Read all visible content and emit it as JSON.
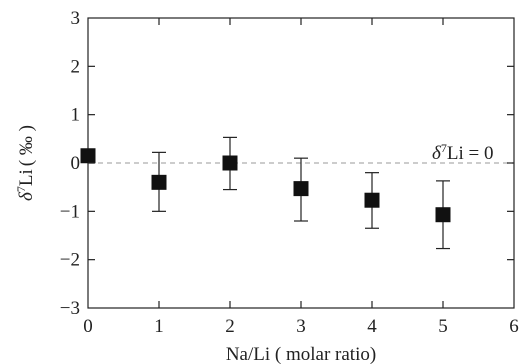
{
  "chart_data": {
    "type": "scatter",
    "title": "",
    "xlabel": "Na/Li ( molar ratio)",
    "ylabel": "δ7Li ( ‰ )",
    "ylabel_parts": {
      "delta": "δ",
      "superscript": "7",
      "element": "Li",
      "unit": "( ‰ )"
    },
    "xlim": [
      0,
      6
    ],
    "ylim": [
      -3,
      3
    ],
    "xticks": [
      0,
      1,
      2,
      3,
      4,
      5,
      6
    ],
    "yticks": [
      -3,
      -2,
      -1,
      0,
      1,
      2,
      3
    ],
    "xtick_labels": [
      "0",
      "1",
      "2",
      "3",
      "4",
      "5",
      "6"
    ],
    "ytick_labels": [
      "−3",
      "−2",
      "−1",
      "0",
      "1",
      "2",
      "3"
    ],
    "grid": false,
    "points": [
      {
        "x": 0,
        "y": 0.15,
        "err_low": null,
        "err_high": null
      },
      {
        "x": 1,
        "y": -0.4,
        "err_low": -1.0,
        "err_high": 0.22
      },
      {
        "x": 2,
        "y": 0.0,
        "err_low": -0.55,
        "err_high": 0.53
      },
      {
        "x": 3,
        "y": -0.53,
        "err_low": -1.2,
        "err_high": 0.1
      },
      {
        "x": 4,
        "y": -0.77,
        "err_low": -1.35,
        "err_high": -0.2
      },
      {
        "x": 5,
        "y": -1.07,
        "err_low": -1.77,
        "err_high": -0.37
      }
    ],
    "reference_line": {
      "y": 0,
      "style": "dashed",
      "label_parts": {
        "delta": "δ",
        "superscript": "7",
        "rest": "Li = 0"
      }
    },
    "colors": {
      "marker": "#111111",
      "axis": "#222222",
      "reference_line": "#bbbbbb"
    }
  }
}
